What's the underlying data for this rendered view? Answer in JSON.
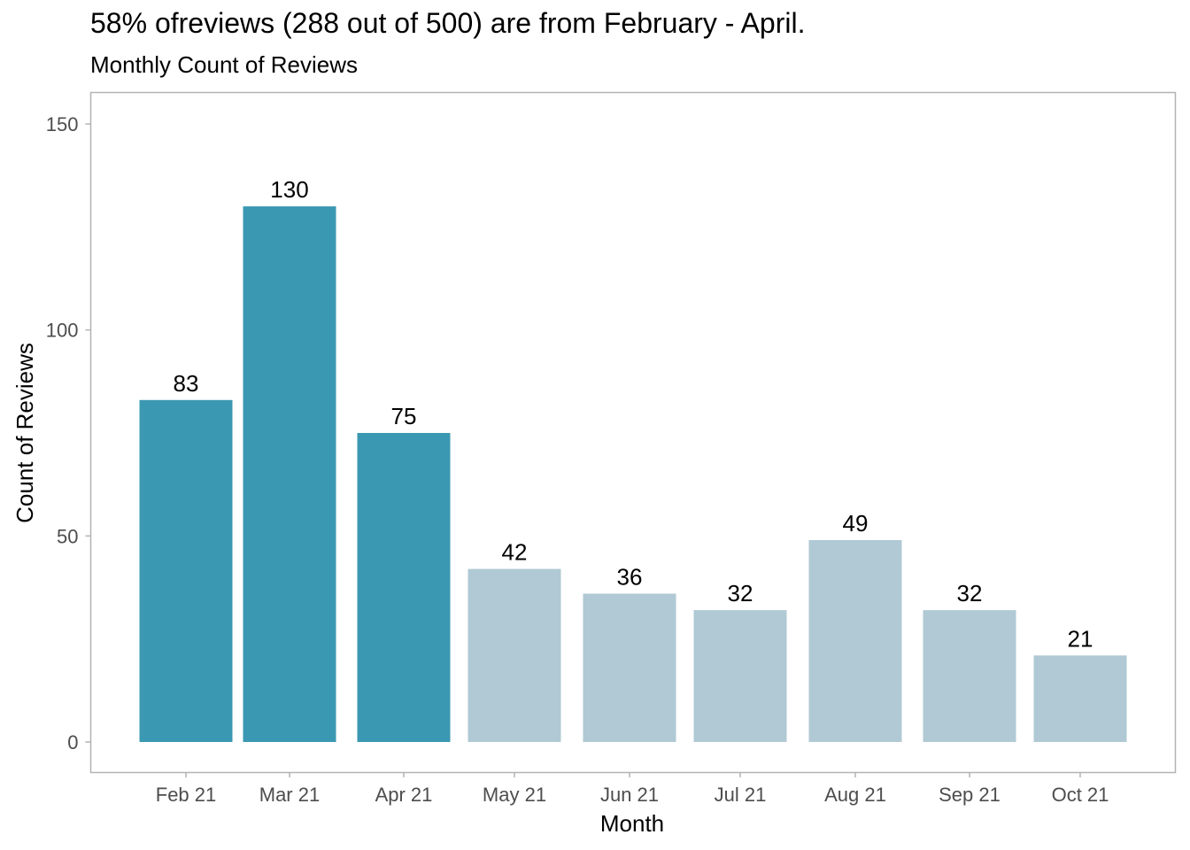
{
  "title": "58% ofreviews (288 out of 500) are from February - April.",
  "subtitle": "Monthly Count of Reviews",
  "colors": {
    "highlight": "#3b98b2",
    "muted": "#b0c9d4"
  },
  "chart_data": {
    "type": "bar",
    "categories": [
      "Feb 21",
      "Mar 21",
      "Apr 21",
      "May 21",
      "Jun 21",
      "Jul 21",
      "Aug 21",
      "Sep 21",
      "Oct 21"
    ],
    "x_dates": [
      "2021-02",
      "2021-03",
      "2021-04",
      "2021-05",
      "2021-06",
      "2021-07",
      "2021-08",
      "2021-09",
      "2021-10"
    ],
    "values": [
      83,
      130,
      75,
      42,
      36,
      32,
      49,
      32,
      21
    ],
    "highlighted": [
      true,
      true,
      true,
      false,
      false,
      false,
      false,
      false,
      false
    ],
    "title": "58% ofreviews (288 out of 500) are from February - April.",
    "subtitle": "Monthly Count of Reviews",
    "xlabel": "Month",
    "ylabel": "Count of Reviews",
    "ylim": [
      0,
      150
    ],
    "yticks": [
      0,
      50,
      100,
      150
    ],
    "grid": false,
    "legend": "none"
  }
}
